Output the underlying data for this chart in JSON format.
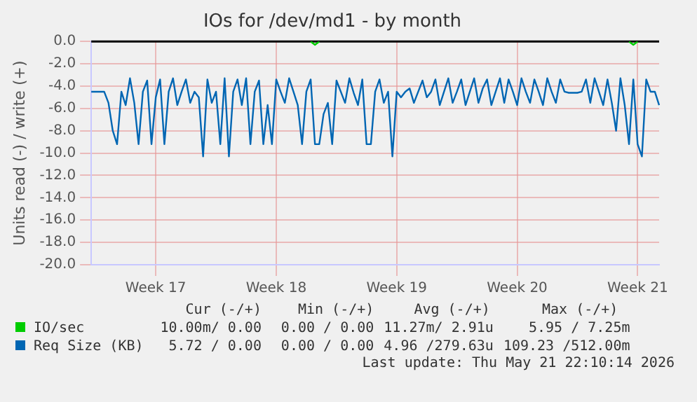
{
  "chart_data": {
    "type": "line",
    "title": "IOs for /dev/md1 - by month",
    "ylabel": "Units read (-) / write (+)",
    "categories": [
      null,
      null,
      null,
      null,
      null,
      null,
      null,
      null,
      null,
      null,
      null,
      null,
      null,
      null,
      null,
      "Week 17",
      null,
      null,
      null,
      null,
      null,
      null,
      null,
      null,
      null,
      null,
      null,
      null,
      null,
      null,
      null,
      null,
      null,
      null,
      null,
      null,
      null,
      null,
      null,
      null,
      null,
      null,
      null,
      "Week 18",
      null,
      null,
      null,
      null,
      null,
      null,
      null,
      null,
      null,
      null,
      null,
      null,
      null,
      null,
      null,
      null,
      null,
      null,
      null,
      null,
      null,
      null,
      null,
      null,
      null,
      null,
      null,
      "Week 19",
      null,
      null,
      null,
      null,
      null,
      null,
      null,
      null,
      null,
      null,
      null,
      null,
      null,
      null,
      null,
      null,
      null,
      null,
      null,
      null,
      null,
      null,
      null,
      null,
      null,
      null,
      null,
      "Week 20",
      null,
      null,
      null,
      null,
      null,
      null,
      null,
      null,
      null,
      null,
      null,
      null,
      null,
      null,
      null,
      null,
      null,
      null,
      null,
      null,
      null,
      null,
      null,
      null,
      null,
      null,
      null,
      "Week 21",
      null,
      null,
      null,
      null,
      null
    ],
    "ylim": [
      -20,
      0
    ],
    "yticks": [
      {
        "value": -20,
        "label": "-20.0"
      },
      {
        "value": -18,
        "label": "-18.0"
      },
      {
        "value": -16,
        "label": "-16.0"
      },
      {
        "value": -14,
        "label": "-14.0"
      },
      {
        "value": -12,
        "label": "-12.0"
      },
      {
        "value": -10,
        "label": "-10.0"
      },
      {
        "value": -8,
        "label": "-8.0"
      },
      {
        "value": -6,
        "label": "-6.0"
      },
      {
        "value": -4,
        "label": "-4.0"
      },
      {
        "value": -2,
        "label": "-2.0"
      },
      {
        "value": 0,
        "label": "0.0"
      }
    ],
    "grid": true,
    "legend": "bottom",
    "marker": "none",
    "line_style": "solid",
    "ref_lines": [
      {
        "axis": "y",
        "value": 0,
        "color": "#000000"
      }
    ],
    "series": [
      {
        "name": "IO/sec",
        "color": "#00cc00",
        "values": [
          null,
          null,
          null,
          null,
          null,
          null,
          null,
          null,
          null,
          null,
          null,
          null,
          null,
          null,
          null,
          null,
          null,
          null,
          null,
          null,
          null,
          null,
          null,
          null,
          null,
          null,
          null,
          null,
          null,
          null,
          null,
          null,
          null,
          null,
          null,
          null,
          null,
          null,
          null,
          null,
          null,
          null,
          null,
          null,
          null,
          null,
          null,
          null,
          null,
          null,
          null,
          0,
          -0.3,
          0,
          null,
          null,
          null,
          null,
          null,
          null,
          null,
          null,
          null,
          null,
          null,
          null,
          null,
          null,
          null,
          null,
          null,
          null,
          null,
          null,
          null,
          null,
          null,
          null,
          null,
          null,
          null,
          null,
          null,
          null,
          null,
          null,
          null,
          null,
          null,
          null,
          null,
          null,
          null,
          null,
          null,
          null,
          null,
          null,
          null,
          null,
          null,
          null,
          null,
          null,
          null,
          null,
          null,
          null,
          null,
          null,
          null,
          null,
          null,
          null,
          null,
          null,
          null,
          null,
          null,
          null,
          null,
          null,
          null,
          null,
          null,
          0,
          -0.3,
          0,
          null,
          null,
          null,
          null,
          null
        ]
      },
      {
        "name": "Req Size (KB)",
        "color": "#0066b3",
        "values": [
          -4.5,
          -4.5,
          -4.5,
          -4.5,
          -5.5,
          -8,
          -9.2,
          -4.5,
          -5.7,
          -3.3,
          -5.5,
          -9.2,
          -4.5,
          -3.5,
          -9.2,
          -5.0,
          -3.4,
          -9.2,
          -4.5,
          -3.3,
          -5.7,
          -4.5,
          -3.4,
          -5.5,
          -4.5,
          -5.0,
          -10.3,
          -3.4,
          -5.5,
          -4.5,
          -9.2,
          -3.3,
          -10.3,
          -4.5,
          -3.4,
          -5.7,
          -3.3,
          -9.2,
          -4.5,
          -3.5,
          -9.2,
          -5.7,
          -9.2,
          -3.4,
          -4.5,
          -5.5,
          -3.3,
          -4.5,
          -5.7,
          -9.2,
          -4.5,
          -3.4,
          -9.2,
          -9.2,
          -6.5,
          -5.5,
          -9.2,
          -3.5,
          -4.5,
          -5.5,
          -3.3,
          -4.6,
          -5.7,
          -3.4,
          -9.2,
          -9.2,
          -4.5,
          -3.4,
          -5.5,
          -4.5,
          -10.3,
          -4.5,
          -5.0,
          -4.5,
          -4.2,
          -5.5,
          -4.5,
          -3.5,
          -5.0,
          -4.5,
          -3.4,
          -5.7,
          -4.5,
          -3.3,
          -5.5,
          -4.5,
          -3.4,
          -5.7,
          -4.5,
          -3.3,
          -5.5,
          -4.2,
          -3.4,
          -5.7,
          -4.5,
          -3.3,
          -5.5,
          -3.4,
          -4.5,
          -5.7,
          -3.3,
          -4.5,
          -5.5,
          -3.4,
          -4.5,
          -5.7,
          -3.3,
          -4.5,
          -5.5,
          -3.4,
          -4.5,
          -4.6,
          -4.6,
          -4.6,
          -4.5,
          -3.4,
          -5.5,
          -3.3,
          -4.5,
          -5.7,
          -3.4,
          -5.5,
          -8.0,
          -3.3,
          -5.7,
          -9.2,
          -3.4,
          -9.2,
          -10.3,
          -3.4,
          -4.5,
          -4.5,
          -5.7
        ]
      }
    ],
    "annotations": [
      "Cur (-/+)",
      "Min (-/+)",
      "Avg (-/+)",
      "Max (-/+)",
      "10.00m/ 0.00",
      "0.00 / 0.00",
      "11.27m/ 2.91u",
      "5.95 / 7.25m",
      "5.72 / 0.00",
      "0.00 / 0.00",
      "4.96 /279.63u",
      "109.23 /512.00m",
      "Last update: Thu May 21 22:10:14 2026"
    ]
  }
}
